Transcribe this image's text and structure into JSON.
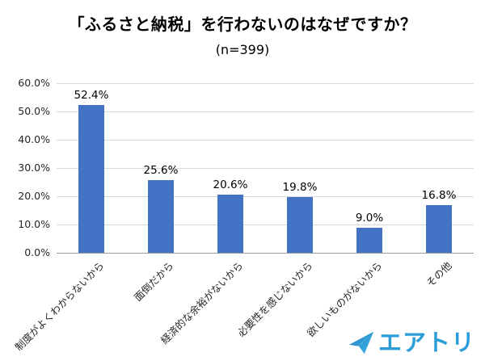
{
  "chart_data": {
    "type": "bar",
    "title": "「ふるさと納税」を行わないのはなぜですか？",
    "subtitle": "(n=399)",
    "categories": [
      "制度がよくわからないから",
      "面倒だから",
      "経済的な余裕がないから",
      "必要性を感じないから",
      "欲しいものがないから",
      "その他"
    ],
    "values": [
      52.4,
      25.6,
      20.6,
      19.8,
      9.0,
      16.8
    ],
    "value_labels": [
      "52.4%",
      "25.6%",
      "20.6%",
      "19.8%",
      "9.0%",
      "16.8%"
    ],
    "xlabel": "",
    "ylabel": "",
    "ylim": [
      0,
      60
    ],
    "y_tick_step": 10,
    "y_tick_labels": [
      "0.0%",
      "10.0%",
      "20.0%",
      "30.0%",
      "40.0%",
      "50.0%",
      "60.0%"
    ],
    "grid": true,
    "legend": false,
    "bar_color": "#4472c4",
    "gridline_color": "#d9d9d9",
    "axis_line_color": "#9a9a9a"
  },
  "footer": {
    "logo_text": "エアトリ",
    "logo_color": "#2b9dd8"
  }
}
